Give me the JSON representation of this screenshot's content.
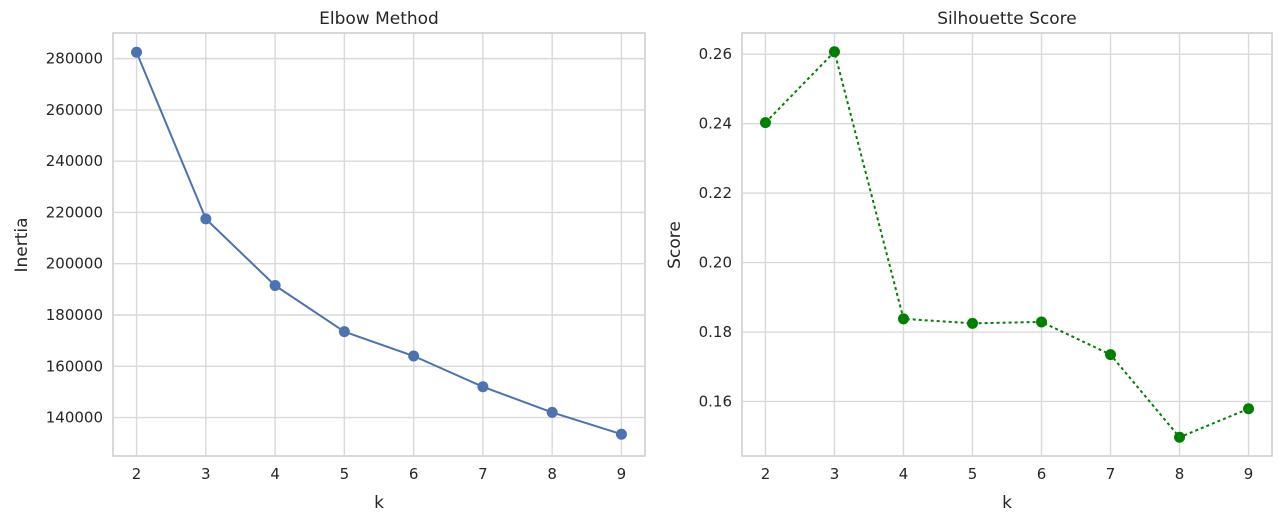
{
  "chart_data": [
    {
      "type": "line",
      "title": "Elbow Method",
      "xlabel": "k",
      "ylabel": "Inertia",
      "x": [
        2,
        3,
        4,
        5,
        6,
        7,
        8,
        9
      ],
      "series": [
        {
          "values": [
            282500,
            217500,
            191500,
            173500,
            164000,
            152000,
            142000,
            133500
          ],
          "color": "#4c72b0",
          "linestyle": "solid",
          "marker": "circle"
        }
      ],
      "xlim": [
        1.66,
        9.34
      ],
      "ylim": [
        125000,
        290000
      ],
      "yticks": [
        140000,
        160000,
        180000,
        200000,
        220000,
        240000,
        260000,
        280000
      ],
      "ytick_labels": [
        "140000",
        "160000",
        "180000",
        "200000",
        "220000",
        "240000",
        "260000",
        "280000"
      ],
      "xticks": [
        2,
        3,
        4,
        5,
        6,
        7,
        8,
        9
      ],
      "xtick_labels": [
        "2",
        "3",
        "4",
        "5",
        "6",
        "7",
        "8",
        "9"
      ],
      "grid": true,
      "legend": "none"
    },
    {
      "type": "line",
      "title": "Silhouette Score",
      "xlabel": "k",
      "ylabel": "Score",
      "x": [
        2,
        3,
        4,
        5,
        6,
        7,
        8,
        9
      ],
      "series": [
        {
          "values": [
            0.2403,
            0.2607,
            0.1838,
            0.1825,
            0.1829,
            0.1735,
            0.1497,
            0.1579
          ],
          "color": "#008000",
          "linestyle": "dotted",
          "marker": "circle"
        }
      ],
      "xlim": [
        1.66,
        9.34
      ],
      "ylim": [
        0.1443,
        0.2661
      ],
      "yticks": [
        0.16,
        0.18,
        0.2,
        0.22,
        0.24,
        0.26
      ],
      "ytick_labels": [
        "0.16",
        "0.18",
        "0.20",
        "0.22",
        "0.24",
        "0.26"
      ],
      "xticks": [
        2,
        3,
        4,
        5,
        6,
        7,
        8,
        9
      ],
      "xtick_labels": [
        "2",
        "3",
        "4",
        "5",
        "6",
        "7",
        "8",
        "9"
      ],
      "grid": true,
      "legend": "none"
    }
  ]
}
